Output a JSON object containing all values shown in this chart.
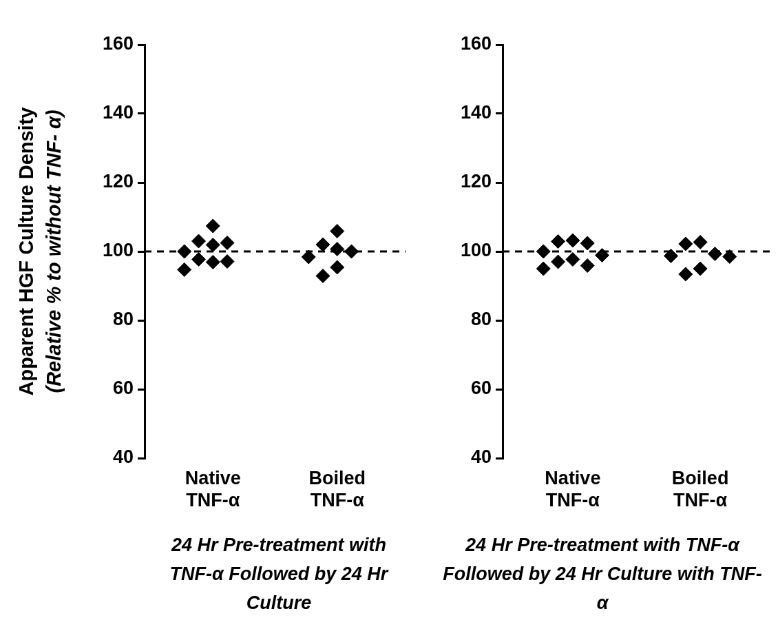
{
  "chart_data": [
    {
      "type": "scatter",
      "ylabel": "Apparent HGF Culture Density\n(Relative % to without TNF- α)",
      "xlabel": "24 Hr Pre-treatment with TNF-α Followed by 24 Hr Culture",
      "categories": [
        "Native TNF-α",
        "Boiled TNF-α"
      ],
      "series": [
        {
          "color": "#000000",
          "x": [
            "Native TNF-α",
            "Native TNF-α",
            "Native TNF-α",
            "Native TNF-α",
            "Native TNF-α",
            "Native TNF-α",
            "Native TNF-α",
            "Native TNF-α",
            "Native TNF-α",
            "Boiled TNF-α",
            "Boiled TNF-α",
            "Boiled TNF-α",
            "Boiled TNF-α",
            "Boiled TNF-α",
            "Boiled TNF-α",
            "Boiled TNF-α"
          ],
          "values": [
            103,
            101.9,
            107.4,
            100,
            102.5,
            97.1,
            94.7,
            96.9,
            97.7,
            102,
            100,
            105.9,
            98.4,
            100.7,
            95.4,
            92.9
          ]
        }
      ],
      "ylim": [
        40,
        160
      ],
      "yticks": [
        40,
        60,
        80,
        100,
        120,
        140,
        160
      ],
      "grid": false,
      "legend": false,
      "marker": "diamond",
      "ref_lines": [
        {
          "axis": "y",
          "value": 100,
          "color": "#000000",
          "line_style": "dashed"
        }
      ]
    },
    {
      "type": "scatter",
      "xlabel": "24 Hr Pre-treatment with TNF-α Followed by 24 Hr Culture with TNF-α",
      "categories": [
        "Native TNF-α",
        "Boiled TNF-α"
      ],
      "series": [
        {
          "color": "#000000",
          "x": [
            "Native TNF-α",
            "Native TNF-α",
            "Native TNF-α",
            "Native TNF-α",
            "Native TNF-α",
            "Native TNF-α",
            "Native TNF-α",
            "Native TNF-α",
            "Native TNF-α",
            "Boiled TNF-α",
            "Boiled TNF-α",
            "Boiled TNF-α",
            "Boiled TNF-α",
            "Boiled TNF-α",
            "Boiled TNF-α",
            "Boiled TNF-α"
          ],
          "values": [
            103.2,
            98.9,
            102.4,
            97,
            100,
            95,
            102.9,
            95.9,
            97.7,
            102.2,
            98.7,
            98.5,
            93.4,
            99.3,
            95,
            102.7
          ]
        }
      ],
      "ylim": [
        40,
        160
      ],
      "yticks": [
        40,
        60,
        80,
        100,
        120,
        140,
        160
      ],
      "grid": false,
      "legend": false,
      "marker": "diamond",
      "ref_lines": [
        {
          "axis": "y",
          "value": 100,
          "color": "#000000",
          "line_style": "dashed"
        }
      ]
    }
  ]
}
